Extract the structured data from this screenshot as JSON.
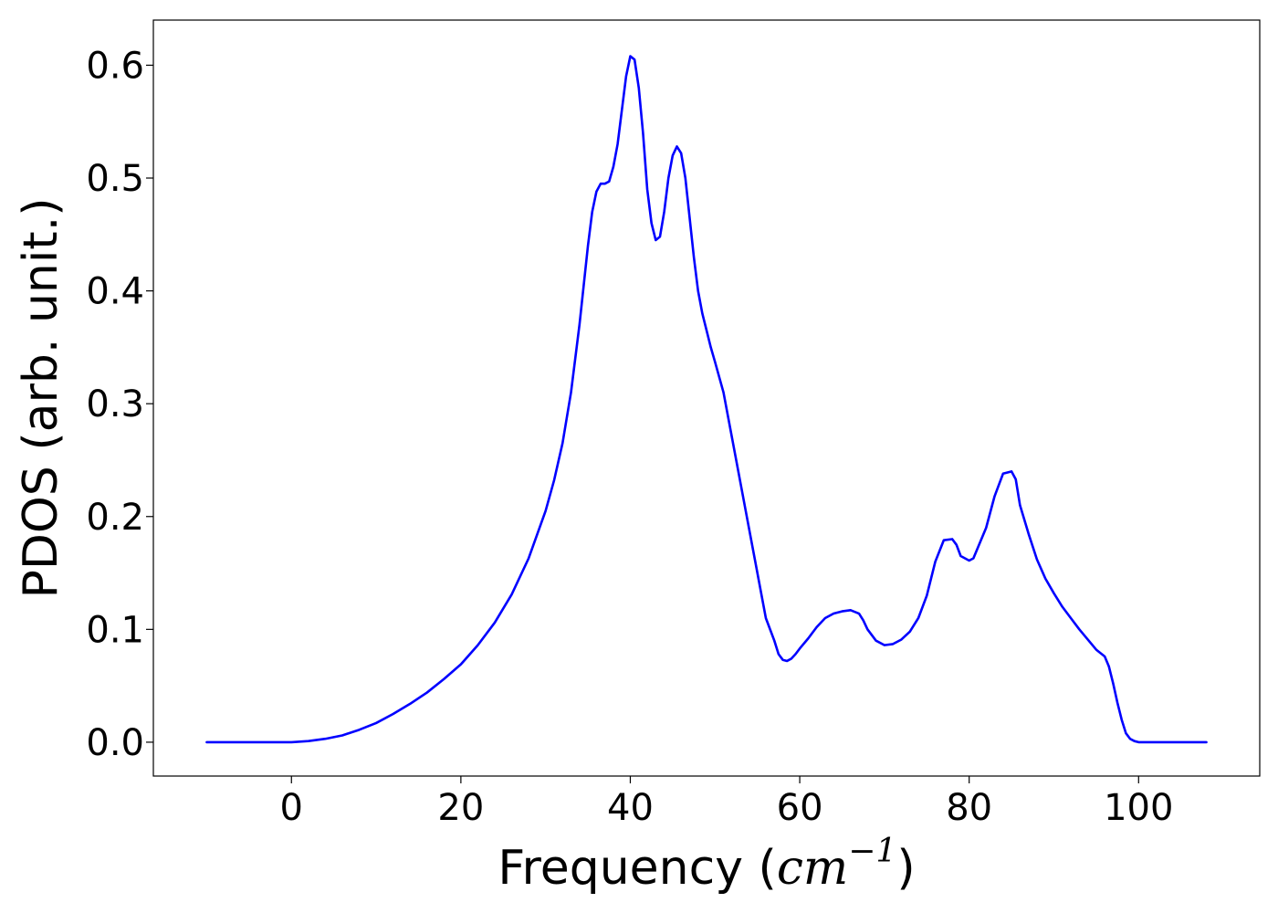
{
  "chart_data": {
    "type": "line",
    "title": "",
    "xlabel": {
      "prefix": "Frequency (",
      "math": "cm",
      "superscript": "−1",
      "suffix": ")"
    },
    "ylabel": "PDOS (arb. unit.)",
    "xlim": [
      -16.3,
      114.3
    ],
    "ylim": [
      -0.03,
      0.64
    ],
    "xticks": [
      0,
      20,
      40,
      60,
      80,
      100
    ],
    "xtick_labels": [
      "0",
      "20",
      "40",
      "60",
      "80",
      "100"
    ],
    "yticks": [
      0.0,
      0.1,
      0.2,
      0.3,
      0.4,
      0.5,
      0.6
    ],
    "ytick_labels": [
      "0.0",
      "0.1",
      "0.2",
      "0.3",
      "0.4",
      "0.5",
      "0.6"
    ],
    "grid": false,
    "legend": false,
    "line_color": "#0000ff",
    "series": [
      {
        "x": [
          -10,
          -5,
          0,
          2,
          4,
          6,
          8,
          10,
          12,
          14,
          16,
          18,
          20,
          22,
          24,
          26,
          28,
          30,
          31,
          32,
          33,
          34,
          35,
          35.5,
          36,
          36.5,
          37,
          37.5,
          38,
          38.5,
          39,
          39.5,
          40,
          40.5,
          41,
          41.5,
          42,
          42.5,
          43,
          43.5,
          44,
          44.5,
          45,
          45.5,
          46,
          46.5,
          47,
          47.5,
          48,
          48.5,
          49,
          49.5,
          50,
          51,
          52,
          53,
          54,
          55,
          56,
          57,
          57.5,
          58,
          58.5,
          59,
          59.5,
          60,
          61,
          62,
          63,
          64,
          65,
          66,
          67,
          67.5,
          68,
          69,
          70,
          71,
          72,
          73,
          74,
          75,
          76,
          77,
          78,
          78.5,
          79,
          80,
          80.5,
          81,
          82,
          83,
          84,
          85,
          85.5,
          86,
          87,
          88,
          89,
          90,
          91,
          92,
          93,
          94,
          95,
          96,
          96.5,
          97,
          97.5,
          98,
          98.5,
          99,
          99.5,
          100,
          101,
          103,
          105,
          108
        ],
        "y": [
          0,
          0,
          0,
          0.001,
          0.003,
          0.006,
          0.011,
          0.017,
          0.025,
          0.034,
          0.044,
          0.056,
          0.069,
          0.086,
          0.106,
          0.131,
          0.163,
          0.205,
          0.232,
          0.265,
          0.31,
          0.37,
          0.44,
          0.47,
          0.488,
          0.495,
          0.495,
          0.497,
          0.51,
          0.53,
          0.56,
          0.59,
          0.608,
          0.605,
          0.58,
          0.54,
          0.49,
          0.46,
          0.445,
          0.448,
          0.47,
          0.5,
          0.52,
          0.528,
          0.522,
          0.5,
          0.465,
          0.43,
          0.4,
          0.38,
          0.365,
          0.35,
          0.337,
          0.31,
          0.27,
          0.23,
          0.19,
          0.15,
          0.11,
          0.09,
          0.078,
          0.073,
          0.072,
          0.074,
          0.078,
          0.083,
          0.092,
          0.102,
          0.11,
          0.114,
          0.116,
          0.117,
          0.114,
          0.108,
          0.1,
          0.09,
          0.086,
          0.087,
          0.091,
          0.098,
          0.11,
          0.13,
          0.16,
          0.179,
          0.18,
          0.175,
          0.165,
          0.161,
          0.163,
          0.172,
          0.19,
          0.218,
          0.238,
          0.24,
          0.233,
          0.21,
          0.185,
          0.162,
          0.145,
          0.132,
          0.12,
          0.11,
          0.1,
          0.091,
          0.082,
          0.076,
          0.067,
          0.052,
          0.035,
          0.02,
          0.008,
          0.003,
          0.001,
          0,
          0,
          0,
          0,
          0
        ]
      }
    ]
  }
}
